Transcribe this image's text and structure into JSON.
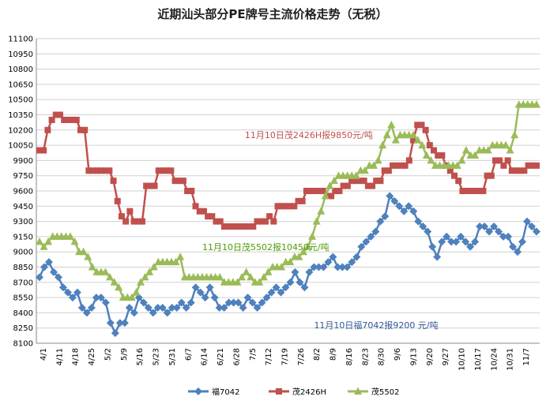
{
  "chart_data": {
    "type": "line",
    "title": "近期汕头部分PE牌号主流价格走势（无税）",
    "xlabel": "",
    "ylabel": "",
    "ylim": [
      8100,
      11100
    ],
    "ytick_step": 150,
    "grid": "horizontal",
    "legend_position": "bottom",
    "x_tick_labels": [
      "4/1",
      "4/11",
      "4/18",
      "4/25",
      "5/2",
      "5/9",
      "5/16",
      "5/23",
      "5/31",
      "6/7",
      "6/14",
      "6/21",
      "6/28",
      "7/5",
      "7/12",
      "7/19",
      "7/26",
      "8/2",
      "8/9",
      "8/16",
      "8/23",
      "8/30",
      "9/6",
      "9/13",
      "9/20",
      "9/27",
      "10/10",
      "10/17",
      "10/24",
      "10/31",
      "11/7"
    ],
    "series": [
      {
        "name": "福7042",
        "color": "#4f81bd",
        "marker": "diamond",
        "values": [
          8750,
          8850,
          8900,
          8800,
          8750,
          8650,
          8600,
          8550,
          8600,
          8450,
          8400,
          8450,
          8550,
          8550,
          8500,
          8300,
          8200,
          8300,
          8300,
          8450,
          8400,
          8550,
          8500,
          8450,
          8400,
          8450,
          8450,
          8400,
          8450,
          8450,
          8500,
          8450,
          8500,
          8650,
          8600,
          8550,
          8650,
          8550,
          8450,
          8450,
          8500,
          8500,
          8500,
          8450,
          8550,
          8500,
          8450,
          8500,
          8550,
          8600,
          8650,
          8600,
          8650,
          8700,
          8800,
          8700,
          8650,
          8800,
          8850,
          8850,
          8850,
          8900,
          8950,
          8850,
          8850,
          8850,
          8900,
          8950,
          9050,
          9100,
          9150,
          9200,
          9300,
          9350,
          9550,
          9500,
          9450,
          9400,
          9450,
          9400,
          9300,
          9250,
          9200,
          9050,
          8950,
          9100,
          9150,
          9100,
          9100,
          9150,
          9100,
          9050,
          9100,
          9250,
          9250,
          9200,
          9250,
          9200,
          9150,
          9150,
          9050,
          9000,
          9100,
          9300,
          9250,
          9200
        ],
        "labels": [
          {
            "text": "11月10日福7042报9200 元/吨",
            "x": 58,
            "y": 8280
          }
        ]
      },
      {
        "name": "茂2426H",
        "color": "#c0504d",
        "marker": "square",
        "values": [
          10000,
          10000,
          10200,
          10300,
          10350,
          10350,
          10300,
          10300,
          10300,
          10300,
          10200,
          10200,
          9800,
          9800,
          9800,
          9800,
          9800,
          9800,
          9700,
          9500,
          9350,
          9300,
          9400,
          9300,
          9300,
          9300,
          9650,
          9650,
          9650,
          9800,
          9800,
          9800,
          9800,
          9700,
          9700,
          9700,
          9600,
          9600,
          9450,
          9400,
          9400,
          9350,
          9350,
          9300,
          9300,
          9250,
          9250,
          9250,
          9250,
          9250,
          9250,
          9250,
          9250,
          9300,
          9300,
          9300,
          9350,
          9300,
          9450,
          9450,
          9450,
          9450,
          9450,
          9500,
          9500,
          9600,
          9600,
          9600,
          9600,
          9600,
          9550,
          9550,
          9600,
          9600,
          9650,
          9650,
          9700,
          9700,
          9700,
          9700,
          9650,
          9650,
          9700,
          9700,
          9800,
          9800,
          9850,
          9850,
          9850,
          9850,
          9900,
          10100,
          10250,
          10250,
          10200,
          10050,
          10000,
          9950,
          9950,
          9850,
          9800,
          9750,
          9700,
          9600,
          9600,
          9600,
          9600,
          9600,
          9600,
          9750,
          9750,
          9900,
          9900,
          9850,
          9900,
          9800,
          9800,
          9800,
          9800,
          9850,
          9850,
          9850
        ],
        "labels": [
          {
            "text": "11月10日茂2426H报9850元/吨",
            "x": 50,
            "y": 10150
          }
        ]
      },
      {
        "name": "茂5502",
        "color": "#9bbb59",
        "marker": "triangle",
        "values": [
          9100,
          9050,
          9100,
          9150,
          9150,
          9150,
          9150,
          9150,
          9100,
          9000,
          9000,
          8950,
          8850,
          8800,
          8800,
          8800,
          8750,
          8700,
          8650,
          8550,
          8550,
          8550,
          8600,
          8700,
          8750,
          8800,
          8850,
          8900,
          8900,
          8900,
          8900,
          8900,
          8950,
          8750,
          8750,
          8750,
          8750,
          8750,
          8750,
          8750,
          8750,
          8750,
          8700,
          8700,
          8700,
          8700,
          8750,
          8800,
          8750,
          8700,
          8700,
          8750,
          8800,
          8850,
          8850,
          8850,
          8900,
          8900,
          8950,
          8950,
          9000,
          9050,
          9150,
          9300,
          9400,
          9550,
          9650,
          9700,
          9750,
          9750,
          9750,
          9750,
          9750,
          9800,
          9800,
          9850,
          9850,
          9900,
          10050,
          10150,
          10250,
          10100,
          10150,
          10150,
          10150,
          10150,
          10100,
          10050,
          9950,
          9900,
          9850,
          9850,
          9850,
          9850,
          9850,
          9850,
          9900,
          10000,
          9950,
          9950,
          10000,
          10000,
          10000,
          10050,
          10050,
          10050,
          10050,
          10000,
          10150,
          10450,
          10450,
          10450,
          10450,
          10450
        ],
        "labels": [
          {
            "text": "11月10日茂5502报10450元/吨",
            "x": 37,
            "y": 9050
          }
        ]
      }
    ]
  }
}
